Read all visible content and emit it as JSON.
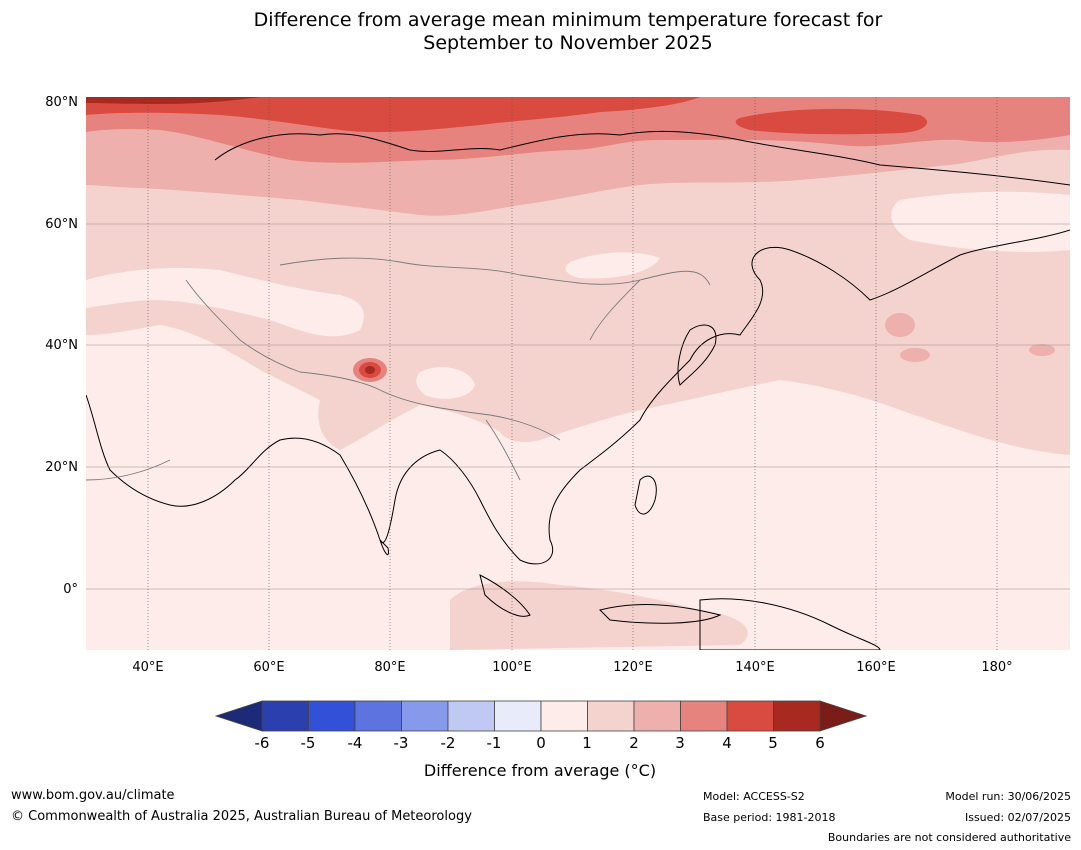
{
  "title": {
    "line1": "Difference from average mean minimum temperature forecast for",
    "line2": "September to November 2025"
  },
  "map": {
    "lat_labels": [
      "80°N",
      "60°N",
      "40°N",
      "20°N",
      "0°"
    ],
    "lon_labels": [
      "40°E",
      "60°E",
      "80°E",
      "100°E",
      "120°E",
      "140°E",
      "160°E",
      "180°"
    ]
  },
  "colorbar": {
    "ticks": [
      "-6",
      "-5",
      "-4",
      "-3",
      "-2",
      "-1",
      "0",
      "1",
      "2",
      "3",
      "4",
      "5",
      "6"
    ],
    "colors": [
      "#1c2a78",
      "#2b3fae",
      "#3350d8",
      "#5d73e0",
      "#8799ea",
      "#bfc9f3",
      "#e8ebfa",
      "#fdecea",
      "#f4d3cf",
      "#edb0ac",
      "#e6837e",
      "#d94a40",
      "#a8291f",
      "#7a1c18"
    ],
    "label": "Difference from average (°C)"
  },
  "footer": {
    "website": "www.bom.gov.au/climate",
    "copyright": "© Commonwealth of Australia 2025, Australian Bureau of Meteorology",
    "model": "Model: ACCESS-S2",
    "base_period": "Base period: 1981-2018",
    "model_run": "Model run: 30/06/2025",
    "issued": "Issued: 02/07/2025",
    "disclaimer": "Boundaries are not considered authoritative"
  }
}
